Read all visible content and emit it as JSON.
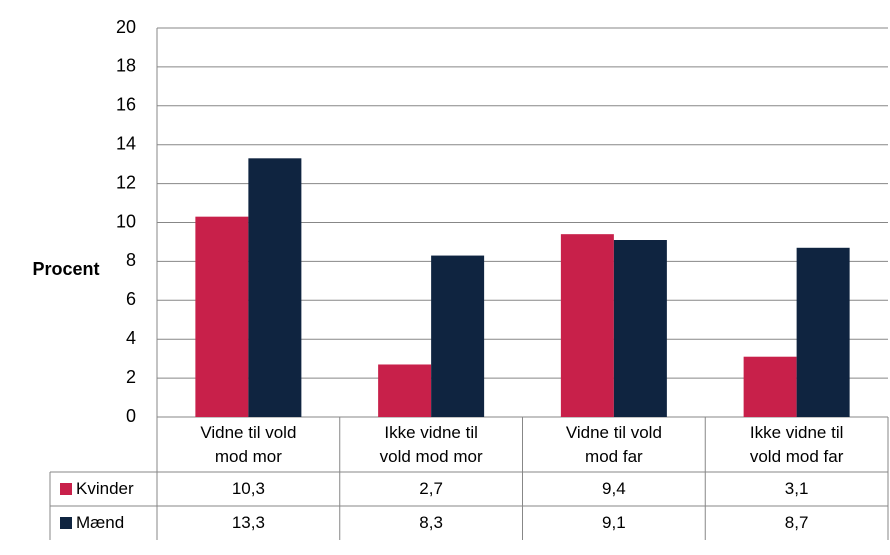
{
  "chart_data": {
    "type": "bar",
    "y_label": "Procent",
    "categories": [
      "Vidne til vold\nmod mor",
      "Ikke vidne til\nvold mod mor",
      "Vidne til vold\nmod far",
      "Ikke vidne til\nvold mod far"
    ],
    "series": [
      {
        "name": "Kvinder",
        "color": "#c8204a",
        "values": [
          10.3,
          2.7,
          9.4,
          3.1
        ],
        "value_labels": [
          "10,3",
          "2,7",
          "9,4",
          "3,1"
        ]
      },
      {
        "name": "Mænd",
        "color": "#0f2440",
        "values": [
          13.3,
          8.3,
          9.1,
          8.7
        ],
        "value_labels": [
          "13,3",
          "8,3",
          "9,1",
          "8,7"
        ]
      }
    ],
    "ylim": [
      0,
      20
    ],
    "yticks": [
      0,
      2,
      4,
      6,
      8,
      10,
      12,
      14,
      16,
      18,
      20
    ],
    "grid": true
  }
}
